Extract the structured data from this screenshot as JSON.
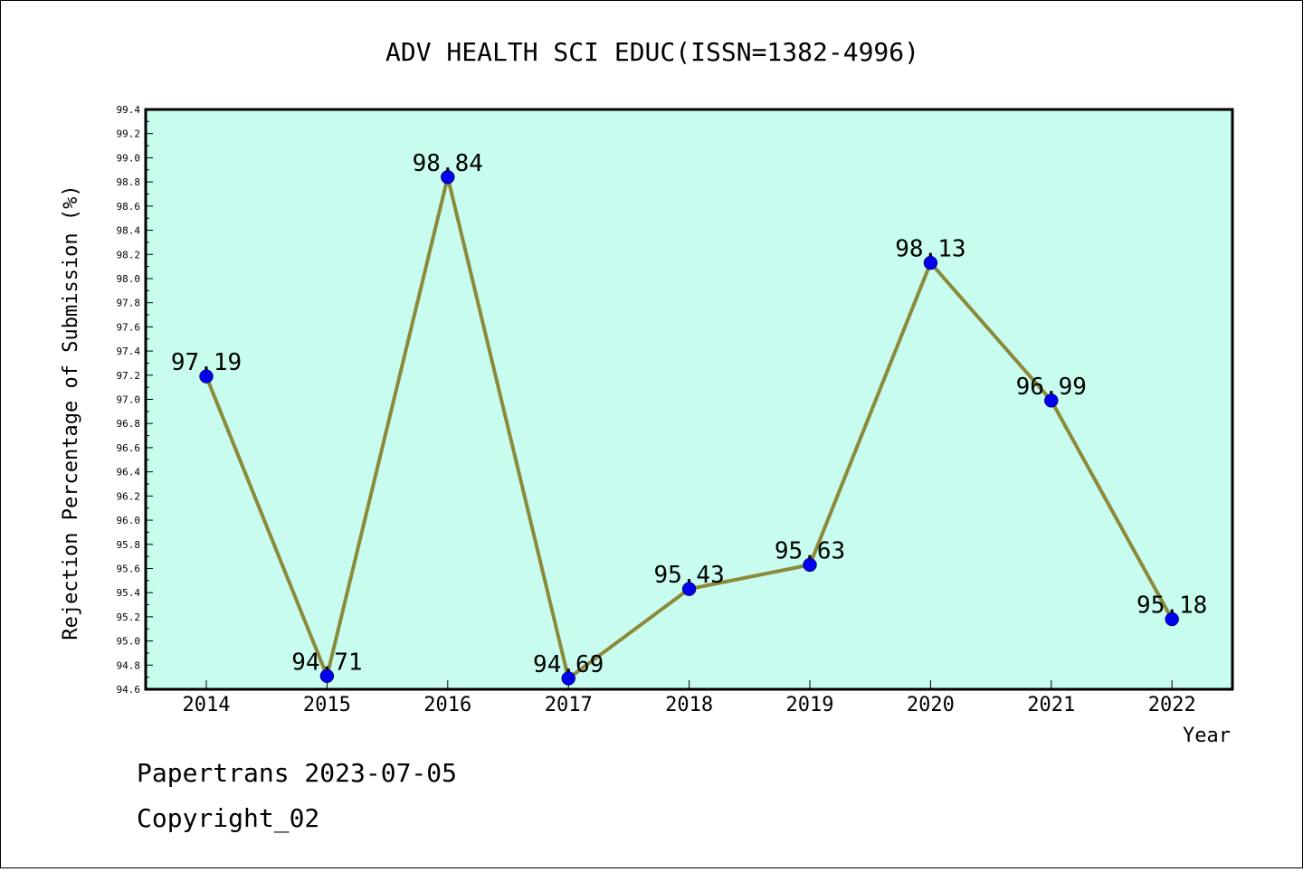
{
  "chart_data": {
    "type": "line",
    "title": "ADV HEALTH SCI EDUC(ISSN=1382-4996)",
    "xlabel": "Year",
    "ylabel": "Rejection Percentage of Submission (%)",
    "categories": [
      "2014",
      "2015",
      "2016",
      "2017",
      "2018",
      "2019",
      "2020",
      "2021",
      "2022"
    ],
    "values": [
      97.19,
      94.71,
      98.84,
      94.69,
      95.43,
      95.63,
      98.13,
      96.99,
      95.18
    ],
    "data_labels": [
      "97.19",
      "94.71",
      "98.84",
      "94.69",
      "95.43",
      "95.63",
      "98.13",
      "96.99",
      "95.18"
    ],
    "ylim": [
      94.6,
      99.4
    ],
    "ytick_labels": [
      "94.6",
      "94.8",
      "95.0",
      "95.2",
      "95.4",
      "95.6",
      "95.8",
      "96.0",
      "96.2",
      "96.4",
      "96.6",
      "96.8",
      "97.0",
      "97.2",
      "97.4",
      "97.6",
      "97.8",
      "98.0",
      "98.2",
      "98.4",
      "98.6",
      "98.8",
      "99.0",
      "99.2",
      "99.4"
    ],
    "grid": false,
    "legend": "none",
    "colors": {
      "plot_background": "#c8fcee",
      "line": "#8b8a3b",
      "marker": "#0000ee"
    }
  },
  "footer": {
    "line1": "Papertrans 2023-07-05",
    "line2": "Copyright_02"
  }
}
